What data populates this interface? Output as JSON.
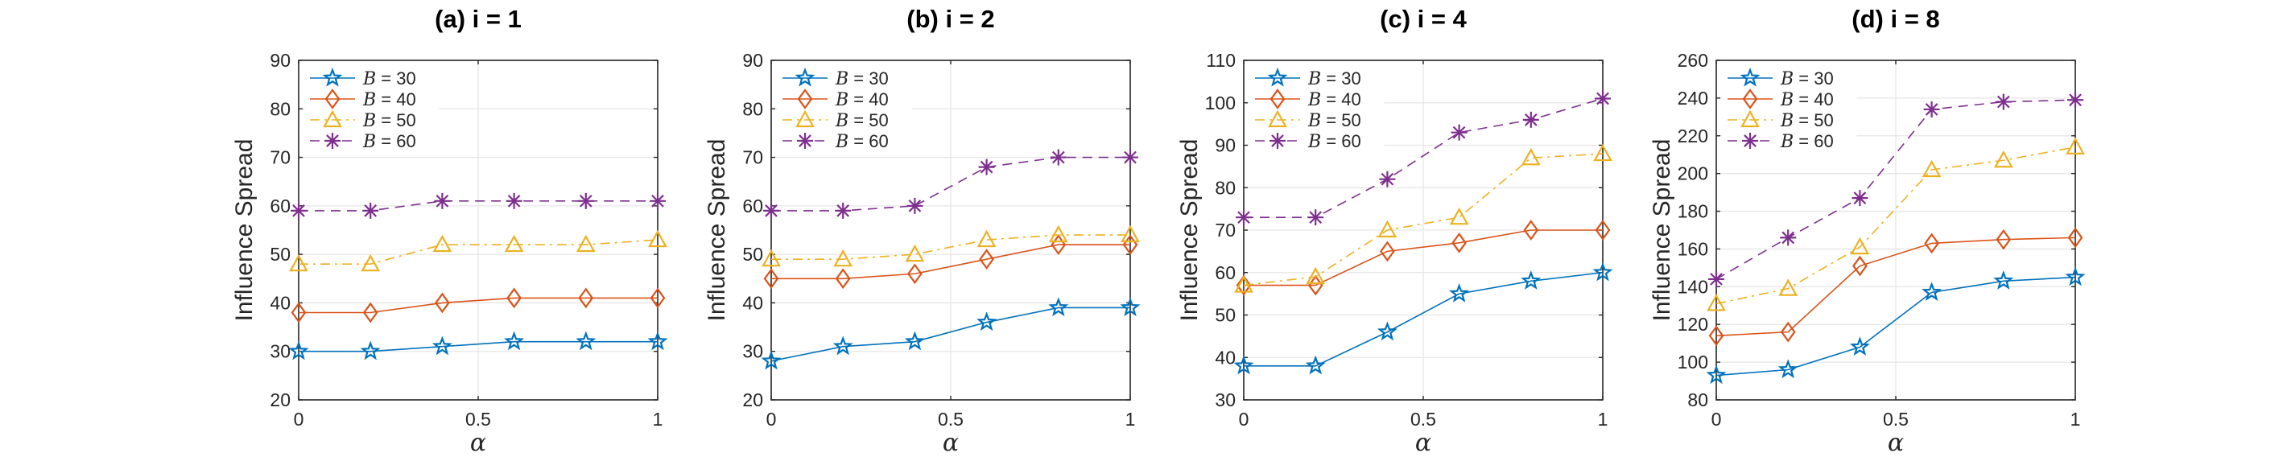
{
  "colors": {
    "B = 30": "#0072BD",
    "B = 40": "#D95319",
    "B = 50": "#EDB120",
    "B = 60": "#7E2F8E"
  },
  "chart_data": [
    {
      "type": "line",
      "title": "(a) i = 1",
      "xlabel": "α",
      "ylabel": "Influence Spread",
      "xlim": [
        0,
        1
      ],
      "ylim": [
        20,
        90
      ],
      "xticks": [
        "0",
        "0.5",
        "1"
      ],
      "yticks": [
        "20",
        "30",
        "40",
        "50",
        "60",
        "70",
        "80",
        "90"
      ],
      "grid": true,
      "legend": "top-left",
      "x": [
        0,
        0.2,
        0.4,
        0.6,
        0.8,
        1
      ],
      "series": [
        {
          "name": "B = 30",
          "marker": "star",
          "dash": "solid",
          "values": [
            30,
            30,
            31,
            32,
            32,
            32
          ]
        },
        {
          "name": "B = 40",
          "marker": "diamond",
          "dash": "solid",
          "values": [
            38,
            38,
            40,
            41,
            41,
            41
          ]
        },
        {
          "name": "B = 50",
          "marker": "triangle",
          "dash": "dashdot",
          "values": [
            48,
            48,
            52,
            52,
            52,
            53
          ]
        },
        {
          "name": "B = 60",
          "marker": "asterisk",
          "dash": "dashed",
          "values": [
            59,
            59,
            61,
            61,
            61,
            61
          ]
        }
      ]
    },
    {
      "type": "line",
      "title": "(b) i = 2",
      "xlabel": "α",
      "ylabel": "Influence Spread",
      "xlim": [
        0,
        1
      ],
      "ylim": [
        20,
        90
      ],
      "xticks": [
        "0",
        "0.5",
        "1"
      ],
      "yticks": [
        "20",
        "30",
        "40",
        "50",
        "60",
        "70",
        "80",
        "90"
      ],
      "grid": true,
      "legend": "top-left",
      "x": [
        0,
        0.2,
        0.4,
        0.6,
        0.8,
        1
      ],
      "series": [
        {
          "name": "B = 30",
          "marker": "star",
          "dash": "solid",
          "values": [
            28,
            31,
            32,
            36,
            39,
            39
          ]
        },
        {
          "name": "B = 40",
          "marker": "diamond",
          "dash": "solid",
          "values": [
            45,
            45,
            46,
            49,
            52,
            52
          ]
        },
        {
          "name": "B = 50",
          "marker": "triangle",
          "dash": "dashdot",
          "values": [
            49,
            49,
            50,
            53,
            54,
            54
          ]
        },
        {
          "name": "B = 60",
          "marker": "asterisk",
          "dash": "dashed",
          "values": [
            59,
            59,
            60,
            68,
            70,
            70
          ]
        }
      ]
    },
    {
      "type": "line",
      "title": "(c) i = 4",
      "xlabel": "α",
      "ylabel": "Influence Spread",
      "xlim": [
        0,
        1
      ],
      "ylim": [
        30,
        110
      ],
      "xticks": [
        "0",
        "0.5",
        "1"
      ],
      "yticks": [
        "30",
        "40",
        "50",
        "60",
        "70",
        "80",
        "90",
        "100",
        "110"
      ],
      "grid": true,
      "legend": "top-left",
      "x": [
        0,
        0.2,
        0.4,
        0.6,
        0.8,
        1
      ],
      "series": [
        {
          "name": "B = 30",
          "marker": "star",
          "dash": "solid",
          "values": [
            38,
            38,
            46,
            55,
            58,
            60
          ]
        },
        {
          "name": "B = 40",
          "marker": "diamond",
          "dash": "solid",
          "values": [
            57,
            57,
            65,
            67,
            70,
            70
          ]
        },
        {
          "name": "B = 50",
          "marker": "triangle",
          "dash": "dashdot",
          "values": [
            57,
            59,
            70,
            73,
            87,
            88
          ]
        },
        {
          "name": "B = 60",
          "marker": "asterisk",
          "dash": "dashed",
          "values": [
            73,
            73,
            82,
            93,
            96,
            101
          ]
        }
      ]
    },
    {
      "type": "line",
      "title": "(d) i = 8",
      "xlabel": "α",
      "ylabel": "Influence Spread",
      "xlim": [
        0,
        1
      ],
      "ylim": [
        80,
        260
      ],
      "xticks": [
        "0",
        "0.5",
        "1"
      ],
      "yticks": [
        "80",
        "100",
        "120",
        "140",
        "160",
        "180",
        "200",
        "220",
        "240",
        "260"
      ],
      "grid": true,
      "legend": "top-left",
      "x": [
        0,
        0.2,
        0.4,
        0.6,
        0.8,
        1
      ],
      "series": [
        {
          "name": "B = 30",
          "marker": "star",
          "dash": "solid",
          "values": [
            93,
            96,
            108,
            137,
            143,
            145
          ]
        },
        {
          "name": "B = 40",
          "marker": "diamond",
          "dash": "solid",
          "values": [
            114,
            116,
            151,
            163,
            165,
            166
          ]
        },
        {
          "name": "B = 50",
          "marker": "triangle",
          "dash": "dashdot",
          "values": [
            131,
            139,
            161,
            202,
            207,
            214
          ]
        },
        {
          "name": "B = 60",
          "marker": "asterisk",
          "dash": "dashed",
          "values": [
            144,
            166,
            187,
            234,
            238,
            239
          ]
        }
      ]
    }
  ]
}
